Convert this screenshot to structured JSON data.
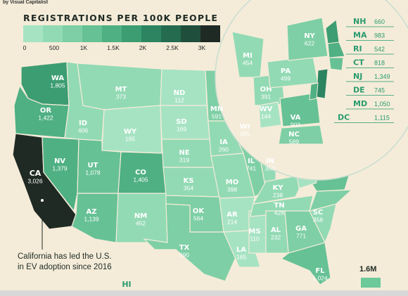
{
  "credit": "by Visual Capitalist",
  "legend": {
    "title": "REGISTRATIONS PER 100K PEOPLE",
    "ticks": [
      "0",
      "500",
      "1K",
      "1.5K",
      "2K",
      "2.5K",
      "3K"
    ],
    "tick_values": [
      0,
      500,
      1000,
      1500,
      2000,
      2500,
      3000
    ],
    "colors": [
      "#a6e3c3",
      "#92dab4",
      "#7ecfa5",
      "#66c195",
      "#4fb083",
      "#3c9d72",
      "#2c8461",
      "#246b50",
      "#1f4f3c",
      "#202a24"
    ]
  },
  "states": [
    {
      "abbr": "WA",
      "value": "1,805",
      "v": 1805
    },
    {
      "abbr": "OR",
      "value": "1,422",
      "v": 1422
    },
    {
      "abbr": "CA",
      "value": "3,026",
      "v": 3026
    },
    {
      "abbr": "NV",
      "value": "1,379",
      "v": 1379
    },
    {
      "abbr": "ID",
      "value": "406",
      "v": 406
    },
    {
      "abbr": "MT",
      "value": "373",
      "v": 373
    },
    {
      "abbr": "WY",
      "value": "185",
      "v": 185
    },
    {
      "abbr": "UT",
      "value": "1,078",
      "v": 1078
    },
    {
      "abbr": "CO",
      "value": "1,405",
      "v": 1405
    },
    {
      "abbr": "AZ",
      "value": "1,139",
      "v": 1139
    },
    {
      "abbr": "NM",
      "value": "452",
      "v": 452
    },
    {
      "abbr": "ND",
      "value": "112",
      "v": 112
    },
    {
      "abbr": "SD",
      "value": "169",
      "v": 169
    },
    {
      "abbr": "NE",
      "value": "319",
      "v": 319
    },
    {
      "abbr": "KS",
      "value": "354",
      "v": 354
    },
    {
      "abbr": "OK",
      "value": "564",
      "v": 564
    },
    {
      "abbr": "TX",
      "value": "690",
      "v": 690
    },
    {
      "abbr": "MN",
      "value": "591",
      "v": 591
    },
    {
      "abbr": "IA",
      "value": "260",
      "v": 260
    },
    {
      "abbr": "MO",
      "value": "398",
      "v": 398
    },
    {
      "abbr": "AR",
      "value": "214",
      "v": 214
    },
    {
      "abbr": "LA",
      "value": "165",
      "v": 165
    },
    {
      "abbr": "WI",
      "value": "385",
      "v": 385
    },
    {
      "abbr": "IL",
      "value": "741",
      "v": 741
    },
    {
      "abbr": "MS",
      "value": "110",
      "v": 110
    },
    {
      "abbr": "IN",
      "value": "350",
      "v": 350
    },
    {
      "abbr": "KY",
      "value": "238",
      "v": 238
    },
    {
      "abbr": "TN",
      "value": "428",
      "v": 428
    },
    {
      "abbr": "AL",
      "value": "232",
      "v": 232
    },
    {
      "abbr": "GA",
      "value": "771",
      "v": 771
    },
    {
      "abbr": "FL",
      "value": "1,024",
      "v": 1024
    },
    {
      "abbr": "SC",
      "value": "358",
      "v": 358
    },
    {
      "abbr": "NC",
      "value": "589",
      "v": 589
    },
    {
      "abbr": "VA",
      "value": "903",
      "v": 903
    },
    {
      "abbr": "WV",
      "value": "144",
      "v": 144
    },
    {
      "abbr": "OH",
      "value": "391",
      "v": 391
    },
    {
      "abbr": "MI",
      "value": "454",
      "v": 454
    },
    {
      "abbr": "PA",
      "value": "499",
      "v": 499
    },
    {
      "abbr": "NY",
      "value": "622",
      "v": 622
    },
    {
      "abbr": "HI",
      "value": "",
      "v": 0
    }
  ],
  "zoom_states": [
    {
      "abbr": "MI",
      "value": "454",
      "v": 454
    },
    {
      "abbr": "OH",
      "value": "391",
      "v": 391
    },
    {
      "abbr": "PA",
      "value": "499",
      "v": 499
    },
    {
      "abbr": "NY",
      "value": "622",
      "v": 622
    },
    {
      "abbr": "WV",
      "value": "144",
      "v": 144
    },
    {
      "abbr": "VA",
      "value": "903",
      "v": 903
    },
    {
      "abbr": "NC",
      "value": "589",
      "v": 589
    }
  ],
  "callouts": [
    {
      "abbr": "NH",
      "value": "660"
    },
    {
      "abbr": "MA",
      "value": "983"
    },
    {
      "abbr": "RI",
      "value": "542"
    },
    {
      "abbr": "CT",
      "value": "818"
    },
    {
      "abbr": "NJ",
      "value": "1,349"
    },
    {
      "abbr": "DE",
      "value": "745"
    },
    {
      "abbr": "MD",
      "value": "1,050"
    },
    {
      "abbr": "DC",
      "value": "1,115"
    }
  ],
  "note": {
    "line1": "California has led the U.S.",
    "line2": "in EV adoption since 2016"
  },
  "total_label": "1.6M",
  "colors": {
    "background": "#f4ecd9",
    "accent": "#2a9b6e",
    "dark": "#1f2a24"
  }
}
